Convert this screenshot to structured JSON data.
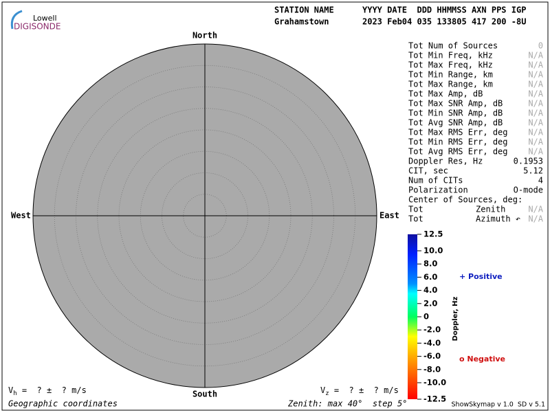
{
  "logo": {
    "top": "Lowell",
    "bottom": "DIGISONDE"
  },
  "header": {
    "labels": [
      "STATION NAME",
      "YYYY DATE  DDD HHMMSS AXN PPS IGP"
    ],
    "values": [
      "Grahamstown",
      "2023 Feb04 035 133805 417 200 -8U"
    ]
  },
  "compass": {
    "north": "North",
    "south": "South",
    "east": "East",
    "west": "West"
  },
  "stats": {
    "rows": [
      [
        "Tot Num of Sources",
        "0"
      ],
      [
        "Tot Min Freq, kHz",
        "N/A"
      ],
      [
        "Tot Max Freq, kHz",
        "N/A"
      ],
      [
        "Tot Min Range, km",
        "N/A"
      ],
      [
        "Tot Max Range, km",
        "N/A"
      ],
      [
        "Tot Max Amp, dB",
        "N/A"
      ],
      [
        "Tot Max SNR Amp, dB",
        "N/A"
      ],
      [
        "Tot Min SNR Amp, dB",
        "N/A"
      ],
      [
        "Tot Avg SNR Amp, dB",
        "N/A"
      ],
      [
        "Tot Max RMS Err, deg",
        "N/A"
      ],
      [
        "Tot Min RMS Err, deg",
        "N/A"
      ],
      [
        "Tot Avg RMS Err, deg",
        "N/A"
      ],
      [
        "Doppler Res, Hz",
        "0.1953"
      ],
      [
        "CIT, sec",
        "5.12"
      ],
      [
        "Num of CITs",
        "4"
      ],
      [
        "Polarization",
        "O-mode"
      ]
    ],
    "center_title": "Center of Sources, deg:",
    "center_rows": [
      [
        "Tot",
        "Zenith",
        "N/A"
      ],
      [
        "Tot",
        "Azimuth ↶",
        "N/A"
      ]
    ]
  },
  "colorbar": {
    "label": "Doppler, Hz",
    "lim": [
      -12.5,
      12.5
    ],
    "ticks": [
      12.5,
      {
        "value": 10,
        "label": "10.0"
      },
      {
        "value": 8,
        "label": "8.0"
      },
      {
        "value": 6,
        "label": "6.0"
      },
      {
        "value": 4,
        "label": "4.0"
      },
      {
        "value": 2,
        "label": "2.0"
      },
      0,
      {
        "value": -2,
        "label": "-2.0"
      },
      {
        "value": -4,
        "label": "-4.0"
      },
      {
        "value": -6,
        "label": "-6.0"
      },
      {
        "value": -8,
        "label": "-8.0"
      },
      {
        "value": -10,
        "label": "-10.0"
      },
      -12.5
    ]
  },
  "legend": {
    "positive": "+ Positive",
    "negative": "o Negative"
  },
  "velocity": {
    "vh_symbol": "V",
    "vh_sub": "h",
    "vh_text": " =  ? ±  ? m/s",
    "vz_symbol": "V",
    "vz_sub": "z",
    "vz_text": " =  ? ±  ? m/s"
  },
  "footer": {
    "left": "Geographic coordinates",
    "center": "Zenith: max 40°  step 5°",
    "right": "ShowSkymap v 1.0  SD v 5.1"
  }
}
